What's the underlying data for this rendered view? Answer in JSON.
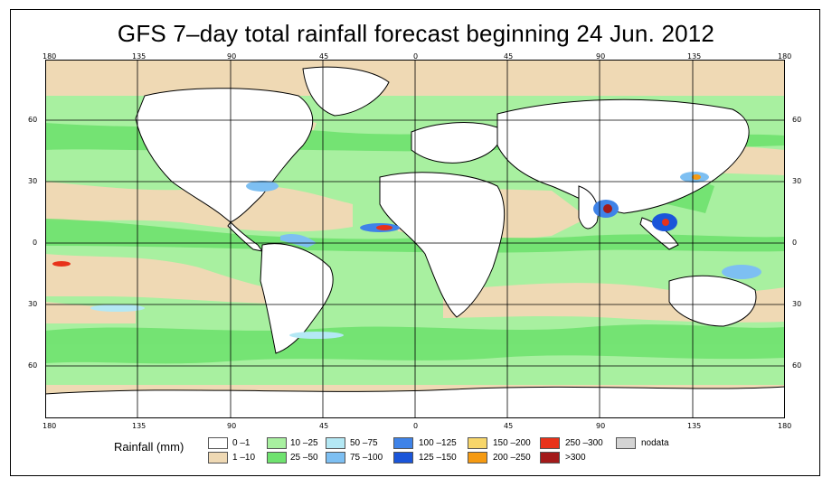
{
  "title": "GFS 7–day total rainfall forecast beginning 24 Jun. 2012",
  "axes": {
    "lon_labels": [
      "180",
      "135",
      "90",
      "45",
      "0",
      "45",
      "90",
      "135",
      "180"
    ],
    "lat_labels": [
      "60",
      "30",
      "0",
      "30",
      "60"
    ]
  },
  "legend": {
    "title": "Rainfall (mm)",
    "items": [
      {
        "label": "0 –1",
        "color": "#ffffff"
      },
      {
        "label": "1 –10",
        "color": "#efd9b4"
      },
      {
        "label": "10 –25",
        "color": "#a8f0a0"
      },
      {
        "label": "25 –50",
        "color": "#6fe26f"
      },
      {
        "label": "50 –75",
        "color": "#b4e8f4"
      },
      {
        "label": "75 –100",
        "color": "#7dbff2"
      },
      {
        "label": "100 –125",
        "color": "#3f83e8"
      },
      {
        "label": "125 –150",
        "color": "#1a55d9"
      },
      {
        "label": "150 –200",
        "color": "#f7d66a"
      },
      {
        "label": "200 –250",
        "color": "#f59a12"
      },
      {
        "label": "250 –300",
        "color": "#e8321a"
      },
      {
        "label": ">300",
        "color": "#a31a1a"
      },
      {
        "label": "nodata",
        "color": "#d4d4d4"
      }
    ]
  }
}
